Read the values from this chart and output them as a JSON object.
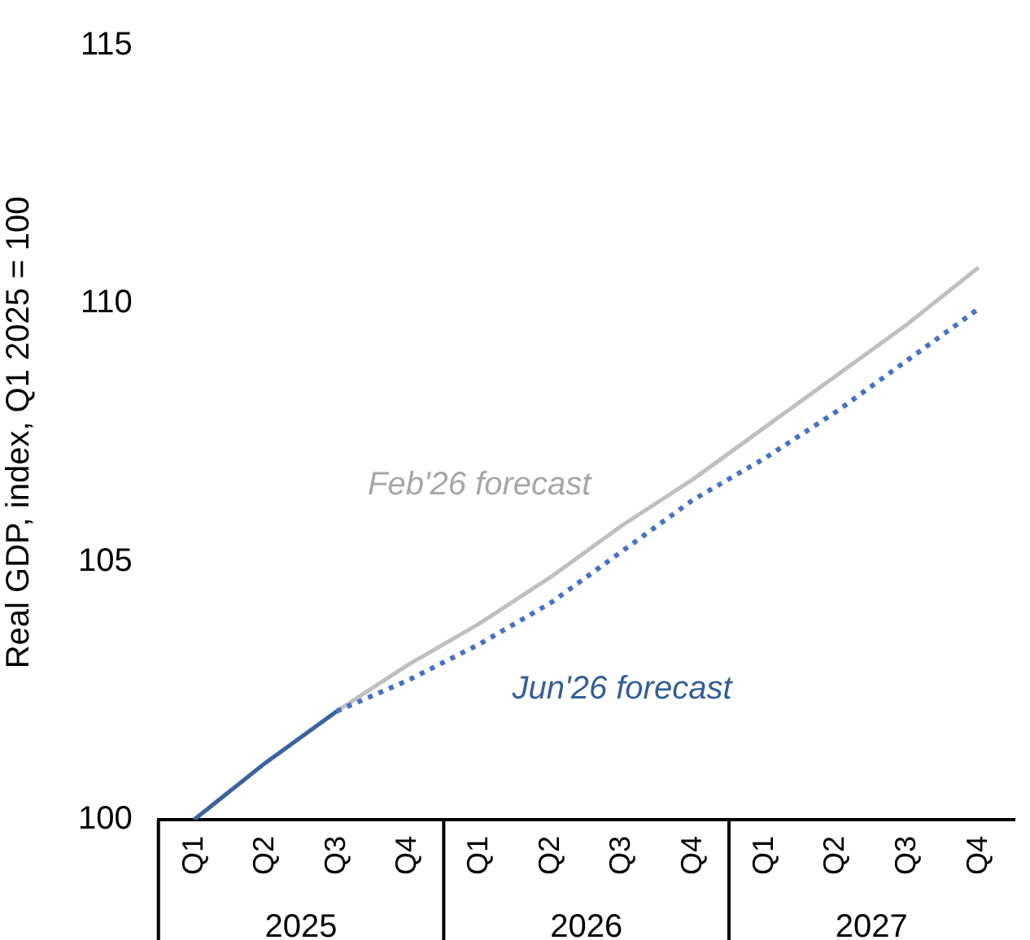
{
  "chart_data": {
    "type": "line",
    "ylabel": "Real GDP, index, Q1 2025 = 100",
    "categories": [
      "Q1",
      "Q2",
      "Q3",
      "Q4",
      "Q1",
      "Q2",
      "Q3",
      "Q4",
      "Q1",
      "Q2",
      "Q3",
      "Q4"
    ],
    "annotations": [
      "2025",
      "2026",
      "2027"
    ],
    "series": [
      {
        "name": "Feb'26 forecast",
        "color": "#bfbfbf",
        "line_style": "solid",
        "values": [
          100,
          101.1,
          102.1,
          103.0,
          103.8,
          104.7,
          105.7,
          106.6,
          107.6,
          108.6,
          109.6,
          110.7
        ]
      },
      {
        "color": "#3a64a0",
        "line_style": "solid",
        "values": [
          100,
          101.1,
          102.1,
          null,
          null,
          null,
          null,
          null,
          null,
          null,
          null,
          null
        ]
      },
      {
        "name": "Jun'26 forecast",
        "color": "#4472c4",
        "line_style": "dotted",
        "values": [
          null,
          null,
          102.1,
          102.7,
          103.4,
          104.2,
          105.2,
          106.2,
          107.0,
          107.9,
          108.9,
          109.9
        ]
      }
    ],
    "ylim": [
      100,
      115
    ],
    "yticks": [
      100,
      105,
      110,
      115
    ],
    "grid": false,
    "legend": false,
    "marker": "none"
  }
}
